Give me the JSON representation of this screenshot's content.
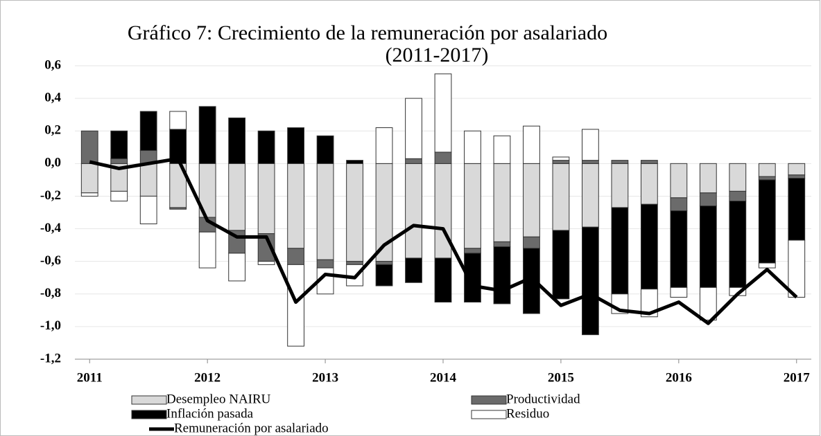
{
  "chart_data": {
    "type": "bar",
    "title": [
      "Gráfico 7: Crecimiento de la remuneración por asalariado",
      "(2011-2017)"
    ],
    "categories": [
      "2011",
      null,
      null,
      null,
      "2012",
      null,
      null,
      null,
      "2013",
      null,
      null,
      null,
      "2014",
      null,
      null,
      null,
      "2015",
      null,
      null,
      null,
      "2016",
      null,
      null,
      null,
      "2017"
    ],
    "ylim": [
      -1.2,
      0.6
    ],
    "yticks": [
      {
        "value": 0.6,
        "label": "0,6"
      },
      {
        "value": 0.4,
        "label": "0,4"
      },
      {
        "value": 0.2,
        "label": "0,2"
      },
      {
        "value": 0,
        "label": "0,0"
      },
      {
        "value": -0.2,
        "label": "-0,2"
      },
      {
        "value": -0.4,
        "label": "-0,4"
      },
      {
        "value": -0.6,
        "label": "-0,6"
      },
      {
        "value": -0.8,
        "label": "-0,8"
      },
      {
        "value": -1.0,
        "label": "-1,0"
      },
      {
        "value": -1.2,
        "label": "-1,2"
      }
    ],
    "grid": true,
    "series": [
      {
        "name": "Desempleo NAIRU",
        "color": "#d9d9d9",
        "values": [
          -0.18,
          -0.17,
          -0.2,
          -0.27,
          -0.33,
          -0.41,
          -0.43,
          -0.52,
          -0.59,
          -0.6,
          -0.6,
          -0.58,
          -0.58,
          -0.52,
          -0.48,
          -0.45,
          -0.41,
          -0.39,
          -0.27,
          -0.25,
          -0.21,
          -0.18,
          -0.17,
          -0.08,
          -0.07
        ]
      },
      {
        "name": "Productividad",
        "color": "#6b6b6b",
        "values": [
          0.2,
          0.03,
          0.08,
          -0.01,
          -0.09,
          -0.14,
          -0.17,
          -0.1,
          -0.05,
          -0.02,
          -0.02,
          0.03,
          0.07,
          -0.03,
          -0.03,
          -0.07,
          0.02,
          0.02,
          0.02,
          0.02,
          -0.08,
          -0.08,
          -0.06,
          -0.02,
          -0.02
        ]
      },
      {
        "name": "Inflación pasada",
        "color": "#000000",
        "values": [
          0,
          0.17,
          0.24,
          0.21,
          0.35,
          0.28,
          0.2,
          0.22,
          0.17,
          0.02,
          -0.13,
          -0.15,
          -0.27,
          -0.3,
          -0.35,
          -0.4,
          -0.42,
          -0.66,
          -0.53,
          -0.52,
          -0.47,
          -0.5,
          -0.53,
          -0.51,
          -0.38
        ]
      },
      {
        "name": "Residuo",
        "color": "#ffffff",
        "values": [
          -0.02,
          -0.06,
          -0.17,
          0.11,
          -0.22,
          -0.17,
          -0.02,
          -0.5,
          -0.16,
          -0.13,
          0.22,
          0.37,
          0.48,
          0.2,
          0.17,
          0.23,
          0.02,
          0.19,
          -0.12,
          -0.17,
          -0.06,
          -0.2,
          -0.05,
          -0.03,
          -0.35
        ]
      },
      {
        "name": "Remuneración por asalariado",
        "type": "line",
        "color": "#000000",
        "values": [
          0.01,
          -0.03,
          0.0,
          0.03,
          -0.35,
          -0.45,
          -0.45,
          -0.85,
          -0.68,
          -0.7,
          -0.5,
          -0.38,
          -0.4,
          -0.75,
          -0.78,
          -0.7,
          -0.87,
          -0.8,
          -0.9,
          -0.92,
          -0.85,
          -0.98,
          -0.8,
          -0.65,
          -0.82
        ]
      }
    ]
  }
}
